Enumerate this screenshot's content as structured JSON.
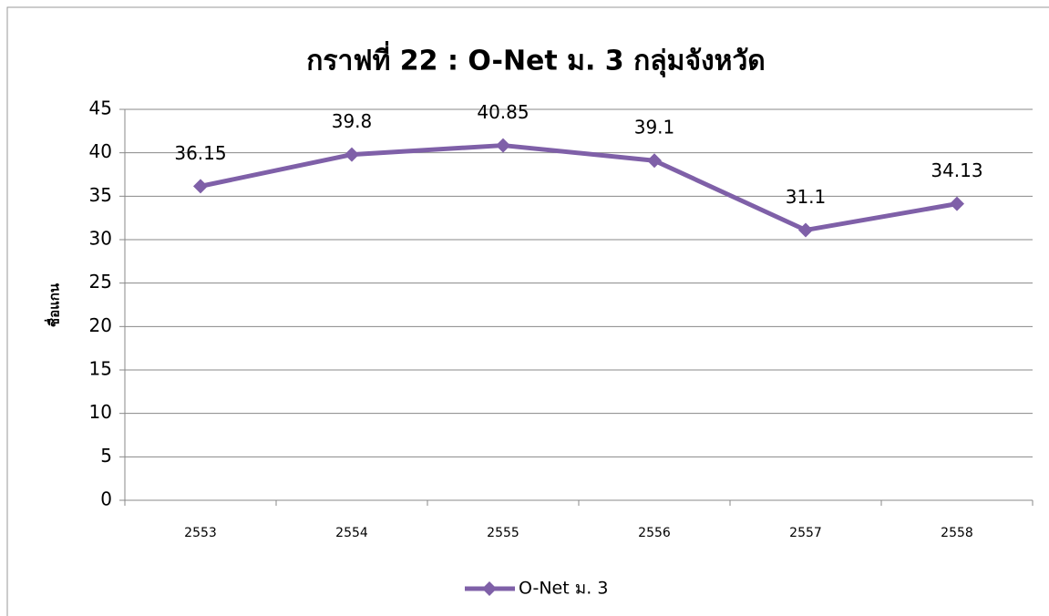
{
  "chart_data": {
    "type": "line",
    "title": "กราฟที่ 22 : O-Net ม. 3 กลุ่มจังหวัด",
    "y_label": "ชื่อแกน",
    "categories": [
      "2553",
      "2554",
      "2555",
      "2556",
      "2557",
      "2558"
    ],
    "series": [
      {
        "name": "O-Net ม. 3",
        "color": "#7f60a8",
        "values": [
          36.15,
          39.8,
          40.85,
          39.1,
          31.1,
          34.13
        ]
      }
    ],
    "ylim": [
      0,
      45
    ],
    "yticks": [
      0,
      5,
      10,
      15,
      20,
      25,
      30,
      35,
      40,
      45
    ],
    "grid": true,
    "legend": "bottom"
  }
}
